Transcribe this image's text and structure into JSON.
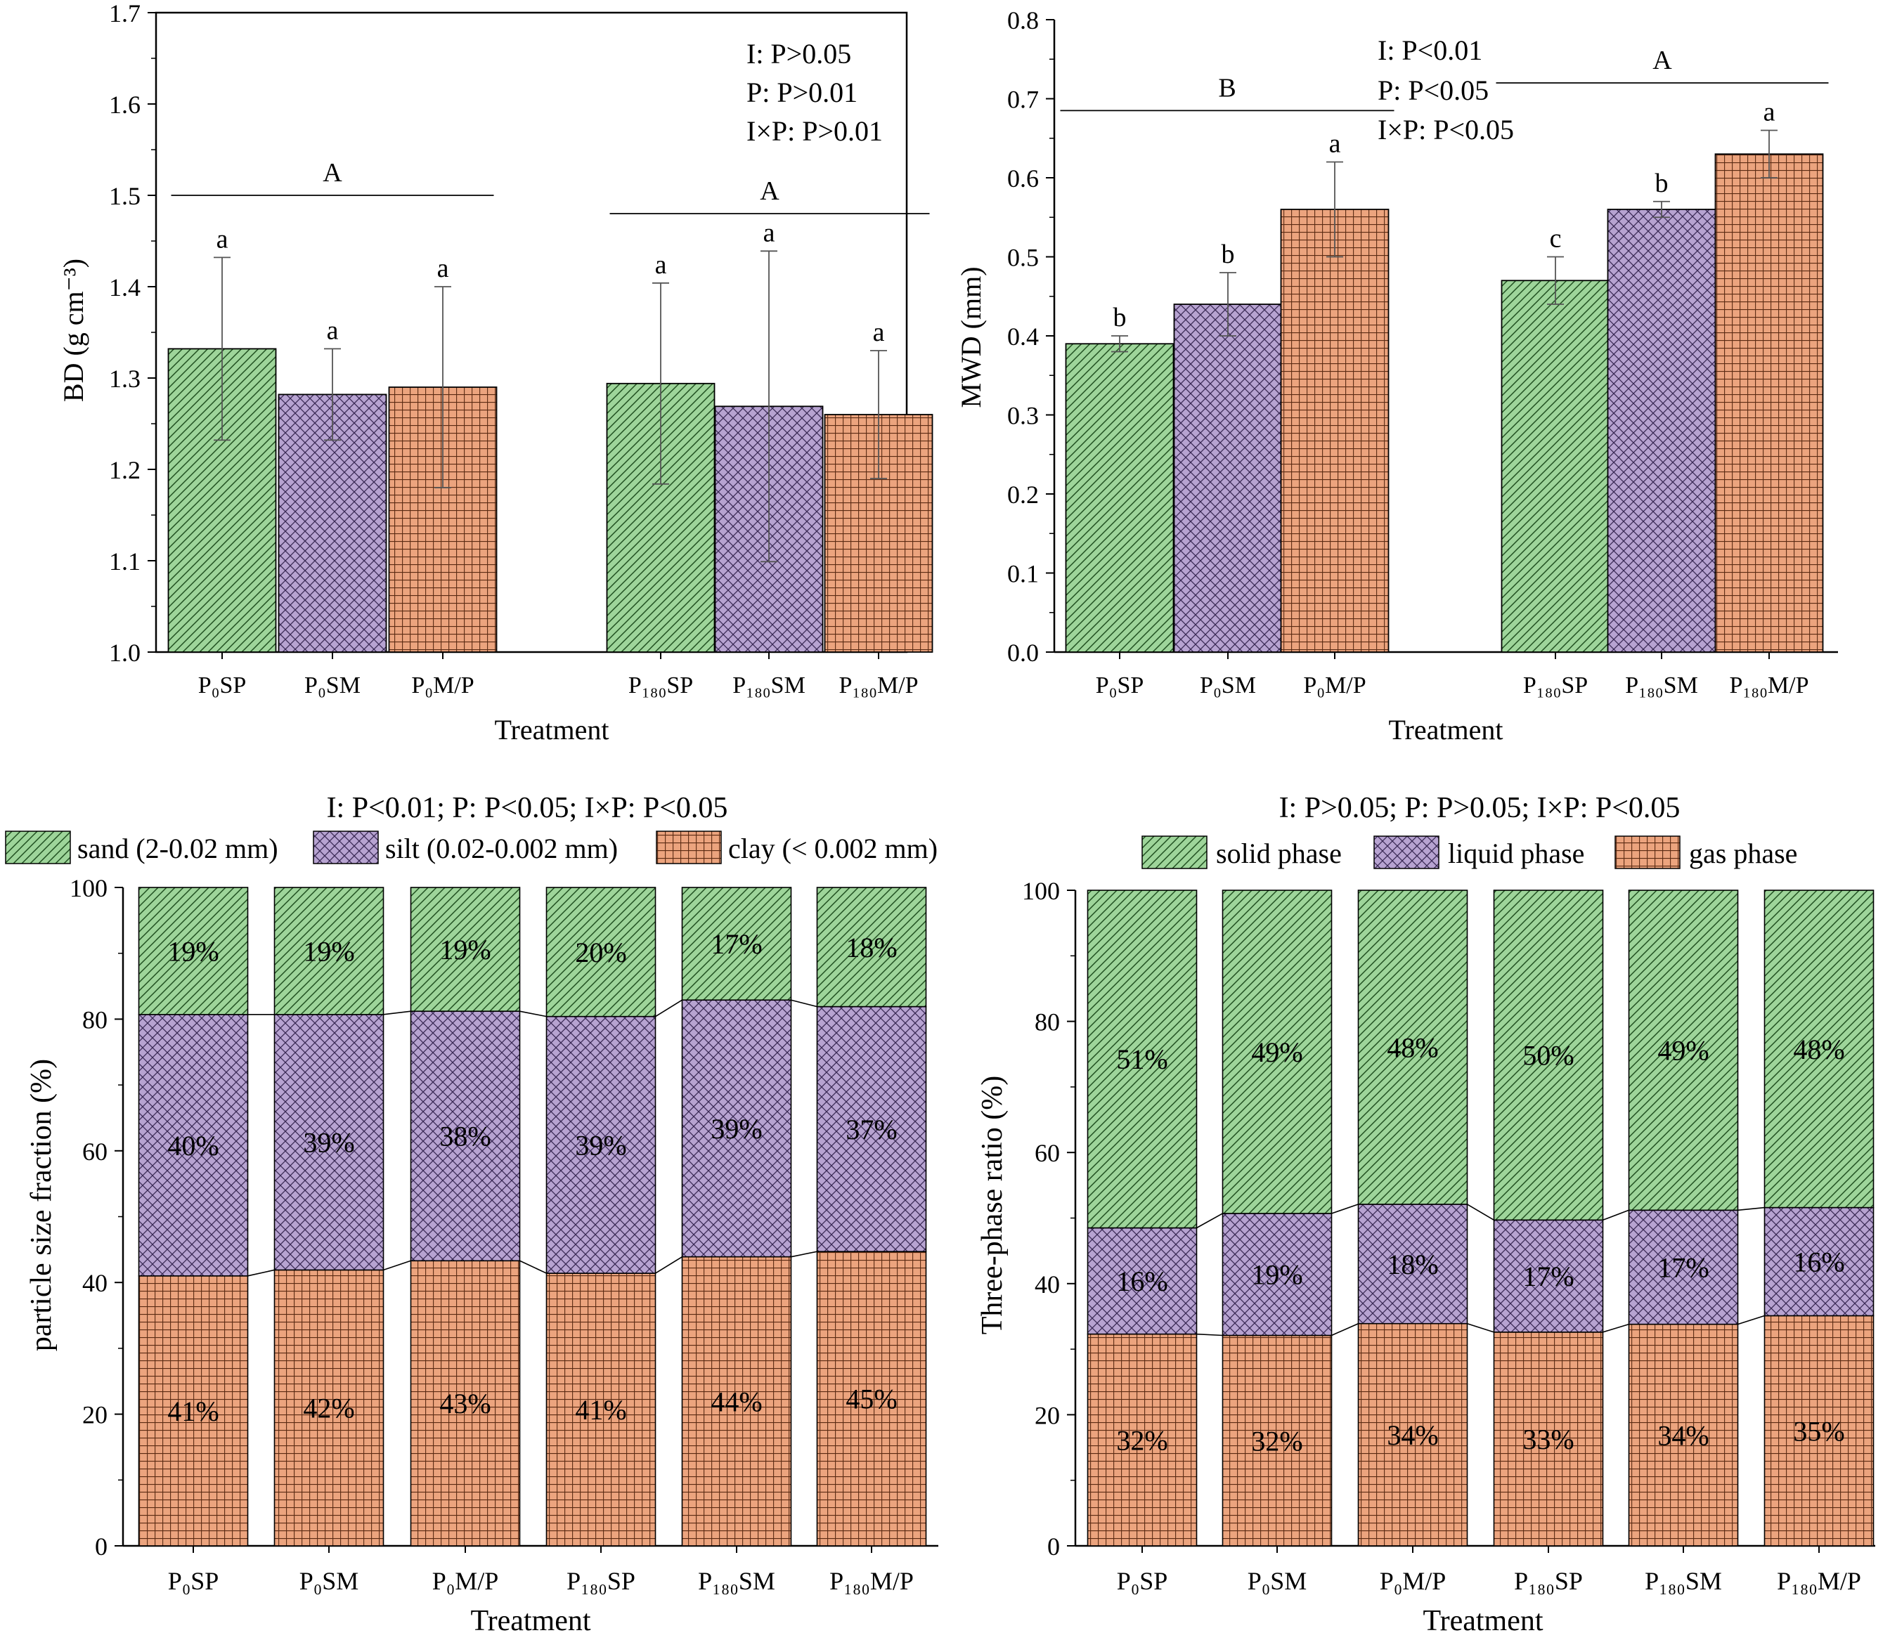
{
  "colors": {
    "green": "#9ed59a",
    "purple": "#b7a3d1",
    "orange": "#eca47e",
    "ink": "#000000",
    "err": "#555555"
  },
  "chart_data": [
    {
      "id": "bd",
      "type": "bar",
      "title": "",
      "ylabel": "BD (g cm⁻³)",
      "xlabel": "Treatment",
      "ylim": [
        1.0,
        1.7
      ],
      "yticks": [
        "1.0",
        "1.1",
        "1.2",
        "1.3",
        "1.4",
        "1.5",
        "1.6",
        "1.7"
      ],
      "categories": [
        "P₀SP",
        "P₀SM",
        "P₀M/P",
        "P₁₈₀SP",
        "P₁₈₀SM",
        "P₁₈₀M/P"
      ],
      "patterns": [
        "diag",
        "cross",
        "grid",
        "diag",
        "cross",
        "grid"
      ],
      "values": [
        1.332,
        1.282,
        1.29,
        1.294,
        1.269,
        1.26
      ],
      "errors": [
        0.1,
        0.05,
        0.11,
        0.11,
        0.17,
        0.07
      ],
      "letters": [
        "a",
        "a",
        "a",
        "a",
        "a",
        "a"
      ],
      "group_labels": [
        {
          "letter": "A",
          "from": 0,
          "to": 2,
          "level": 1.5
        },
        {
          "letter": "A",
          "from": 3,
          "to": 5,
          "level": 1.48
        }
      ],
      "stats": [
        "I: P>0.05",
        "P: P>0.01",
        "I×P: P>0.01"
      ]
    },
    {
      "id": "mwd",
      "type": "bar",
      "title": "",
      "ylabel": "MWD (mm)",
      "xlabel": "Treatment",
      "ylim": [
        0.0,
        0.8
      ],
      "yticks": [
        "0.0",
        "0.1",
        "0.2",
        "0.3",
        "0.4",
        "0.5",
        "0.6",
        "0.7",
        "0.8"
      ],
      "categories": [
        "P₀SP",
        "P₀SM",
        "P₀M/P",
        "P₁₈₀SP",
        "P₁₈₀SM",
        "P₁₈₀M/P"
      ],
      "patterns": [
        "diag",
        "cross",
        "grid",
        "diag",
        "cross",
        "grid"
      ],
      "values": [
        0.39,
        0.44,
        0.56,
        0.47,
        0.56,
        0.63
      ],
      "errors": [
        0.01,
        0.04,
        0.06,
        0.03,
        0.01,
        0.03
      ],
      "letters": [
        "b",
        "b",
        "a",
        "c",
        "b",
        "a"
      ],
      "group_labels": [
        {
          "letter": "B",
          "from": 0,
          "to": 2,
          "level": 0.685
        },
        {
          "letter": "A",
          "from": 3,
          "to": 5,
          "level": 0.72
        }
      ],
      "stats": [
        "I: P<0.01",
        "P: P<0.05",
        "I×P: P<0.05"
      ]
    },
    {
      "id": "psf",
      "type": "bar",
      "stacked": true,
      "title": "I: P<0.01; P: P<0.05; I×P: P<0.05",
      "ylabel": "particle size fraction (%)",
      "xlabel": "Treatment",
      "ylim": [
        0,
        100
      ],
      "yticks": [
        "0",
        "20",
        "40",
        "60",
        "80",
        "100"
      ],
      "categories": [
        "P₀SP",
        "P₀SM",
        "P₀M/P",
        "P₁₈₀SP",
        "P₁₈₀SM",
        "P₁₈₀M/P"
      ],
      "series": [
        {
          "name": "clay (< 0.002 mm)",
          "pattern": "grid",
          "values": [
            41.0,
            41.9,
            43.3,
            41.4,
            43.9,
            44.7
          ],
          "labels": [
            "41%",
            "42%",
            "43%",
            "41%",
            "44%",
            "45%"
          ]
        },
        {
          "name": "silt (0.02-0.002 mm)",
          "pattern": "cross",
          "values": [
            39.7,
            38.8,
            37.9,
            39.0,
            39.0,
            37.2
          ],
          "labels": [
            "40%",
            "39%",
            "38%",
            "39%",
            "39%",
            "37%"
          ]
        },
        {
          "name": "sand (2-0.02 mm)",
          "pattern": "diag",
          "values": [
            19.3,
            19.3,
            18.8,
            19.6,
            17.1,
            18.1
          ],
          "labels": [
            "19%",
            "19%",
            "19%",
            "20%",
            "17%",
            "18%"
          ]
        }
      ],
      "legend_order": [
        "sand (2-0.02 mm)",
        "silt (0.02-0.002 mm)",
        "clay (< 0.002 mm)"
      ]
    },
    {
      "id": "tpr",
      "type": "bar",
      "stacked": true,
      "title": "I: P>0.05; P: P>0.05; I×P: P<0.05",
      "ylabel": "Three-phase ratio (%)",
      "xlabel": "Treatment",
      "ylim": [
        0,
        100
      ],
      "yticks": [
        "0",
        "20",
        "40",
        "60",
        "80",
        "100"
      ],
      "categories": [
        "P₀SP",
        "P₀SM",
        "P₀M/P",
        "P₁₈₀SP",
        "P₁₈₀SM",
        "P₁₈₀M/P"
      ],
      "series": [
        {
          "name": "gas phase",
          "pattern": "grid",
          "values": [
            32.3,
            32.1,
            33.9,
            32.6,
            33.8,
            35.1
          ],
          "labels": [
            "32%",
            "32%",
            "34%",
            "33%",
            "34%",
            "35%"
          ]
        },
        {
          "name": "liquid phase",
          "pattern": "cross",
          "values": [
            16.2,
            18.6,
            18.2,
            17.1,
            17.4,
            16.5
          ],
          "labels": [
            "16%",
            "19%",
            "18%",
            "17%",
            "17%",
            "16%"
          ]
        },
        {
          "name": "solid phase",
          "pattern": "diag",
          "values": [
            51.5,
            49.3,
            47.9,
            50.3,
            48.8,
            48.4
          ],
          "labels": [
            "51%",
            "49%",
            "48%",
            "50%",
            "49%",
            "48%"
          ]
        }
      ],
      "legend_order": [
        "solid phase",
        "liquid phase",
        "gas phase"
      ]
    }
  ]
}
